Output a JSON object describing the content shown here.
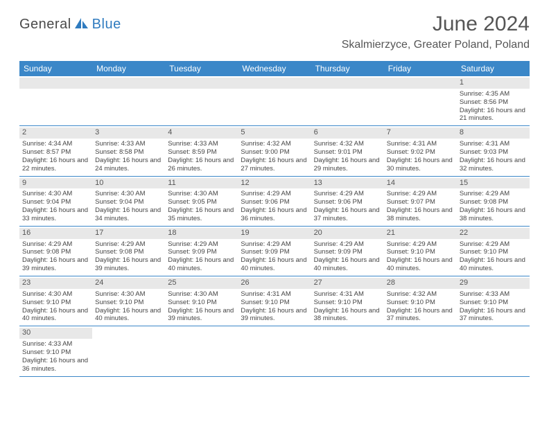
{
  "logo": {
    "part1": "General",
    "part2": "Blue",
    "icon_color": "#2f7bbf"
  },
  "title": "June 2024",
  "location": "Skalmierzyce, Greater Poland, Poland",
  "header_bg": "#3b87c8",
  "header_fg": "#ffffff",
  "daynum_bg": "#e8e8e8",
  "border_color": "#3b87c8",
  "text_color": "#444444",
  "title_color": "#555555",
  "day_names": [
    "Sunday",
    "Monday",
    "Tuesday",
    "Wednesday",
    "Thursday",
    "Friday",
    "Saturday"
  ],
  "weeks": [
    [
      null,
      null,
      null,
      null,
      null,
      null,
      {
        "d": "1",
        "sr": "4:35 AM",
        "ss": "8:56 PM",
        "dl": "16 hours and 21 minutes."
      }
    ],
    [
      {
        "d": "2",
        "sr": "4:34 AM",
        "ss": "8:57 PM",
        "dl": "16 hours and 22 minutes."
      },
      {
        "d": "3",
        "sr": "4:33 AM",
        "ss": "8:58 PM",
        "dl": "16 hours and 24 minutes."
      },
      {
        "d": "4",
        "sr": "4:33 AM",
        "ss": "8:59 PM",
        "dl": "16 hours and 26 minutes."
      },
      {
        "d": "5",
        "sr": "4:32 AM",
        "ss": "9:00 PM",
        "dl": "16 hours and 27 minutes."
      },
      {
        "d": "6",
        "sr": "4:32 AM",
        "ss": "9:01 PM",
        "dl": "16 hours and 29 minutes."
      },
      {
        "d": "7",
        "sr": "4:31 AM",
        "ss": "9:02 PM",
        "dl": "16 hours and 30 minutes."
      },
      {
        "d": "8",
        "sr": "4:31 AM",
        "ss": "9:03 PM",
        "dl": "16 hours and 32 minutes."
      }
    ],
    [
      {
        "d": "9",
        "sr": "4:30 AM",
        "ss": "9:04 PM",
        "dl": "16 hours and 33 minutes."
      },
      {
        "d": "10",
        "sr": "4:30 AM",
        "ss": "9:04 PM",
        "dl": "16 hours and 34 minutes."
      },
      {
        "d": "11",
        "sr": "4:30 AM",
        "ss": "9:05 PM",
        "dl": "16 hours and 35 minutes."
      },
      {
        "d": "12",
        "sr": "4:29 AM",
        "ss": "9:06 PM",
        "dl": "16 hours and 36 minutes."
      },
      {
        "d": "13",
        "sr": "4:29 AM",
        "ss": "9:06 PM",
        "dl": "16 hours and 37 minutes."
      },
      {
        "d": "14",
        "sr": "4:29 AM",
        "ss": "9:07 PM",
        "dl": "16 hours and 38 minutes."
      },
      {
        "d": "15",
        "sr": "4:29 AM",
        "ss": "9:08 PM",
        "dl": "16 hours and 38 minutes."
      }
    ],
    [
      {
        "d": "16",
        "sr": "4:29 AM",
        "ss": "9:08 PM",
        "dl": "16 hours and 39 minutes."
      },
      {
        "d": "17",
        "sr": "4:29 AM",
        "ss": "9:08 PM",
        "dl": "16 hours and 39 minutes."
      },
      {
        "d": "18",
        "sr": "4:29 AM",
        "ss": "9:09 PM",
        "dl": "16 hours and 40 minutes."
      },
      {
        "d": "19",
        "sr": "4:29 AM",
        "ss": "9:09 PM",
        "dl": "16 hours and 40 minutes."
      },
      {
        "d": "20",
        "sr": "4:29 AM",
        "ss": "9:09 PM",
        "dl": "16 hours and 40 minutes."
      },
      {
        "d": "21",
        "sr": "4:29 AM",
        "ss": "9:10 PM",
        "dl": "16 hours and 40 minutes."
      },
      {
        "d": "22",
        "sr": "4:29 AM",
        "ss": "9:10 PM",
        "dl": "16 hours and 40 minutes."
      }
    ],
    [
      {
        "d": "23",
        "sr": "4:30 AM",
        "ss": "9:10 PM",
        "dl": "16 hours and 40 minutes."
      },
      {
        "d": "24",
        "sr": "4:30 AM",
        "ss": "9:10 PM",
        "dl": "16 hours and 40 minutes."
      },
      {
        "d": "25",
        "sr": "4:30 AM",
        "ss": "9:10 PM",
        "dl": "16 hours and 39 minutes."
      },
      {
        "d": "26",
        "sr": "4:31 AM",
        "ss": "9:10 PM",
        "dl": "16 hours and 39 minutes."
      },
      {
        "d": "27",
        "sr": "4:31 AM",
        "ss": "9:10 PM",
        "dl": "16 hours and 38 minutes."
      },
      {
        "d": "28",
        "sr": "4:32 AM",
        "ss": "9:10 PM",
        "dl": "16 hours and 37 minutes."
      },
      {
        "d": "29",
        "sr": "4:33 AM",
        "ss": "9:10 PM",
        "dl": "16 hours and 37 minutes."
      }
    ],
    [
      {
        "d": "30",
        "sr": "4:33 AM",
        "ss": "9:10 PM",
        "dl": "16 hours and 36 minutes."
      },
      null,
      null,
      null,
      null,
      null,
      null
    ]
  ],
  "labels": {
    "sunrise": "Sunrise:",
    "sunset": "Sunset:",
    "daylight": "Daylight:"
  }
}
